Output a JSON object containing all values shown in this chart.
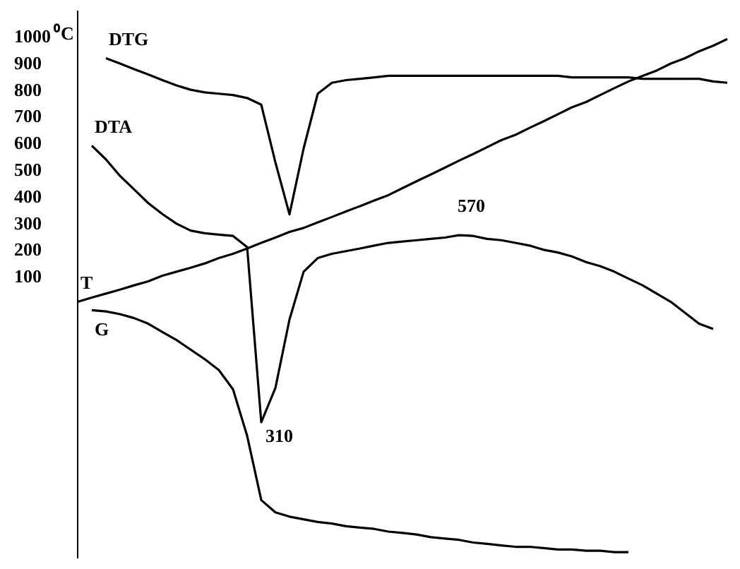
{
  "chart_data": {
    "type": "line",
    "ylabel": "⁰C",
    "categories": [
      null,
      null,
      null,
      null,
      null,
      null,
      null,
      null,
      null,
      null,
      null,
      null,
      null,
      null,
      null,
      null,
      null,
      null,
      null,
      null,
      null,
      null,
      null,
      null,
      null,
      null,
      null,
      null,
      null,
      null,
      null,
      null,
      null,
      null,
      null,
      null,
      null,
      null,
      null,
      null,
      null,
      null,
      null,
      null,
      null,
      null,
      null
    ],
    "series": [
      {
        "name": "DTG",
        "color": "#000000",
        "values": [
          null,
          null,
          923,
          903,
          882,
          862,
          841,
          821,
          805,
          795,
          790,
          785,
          774,
          749,
          533,
          338,
          585,
          790,
          831,
          841,
          846,
          851,
          857,
          857,
          857,
          857,
          857,
          857,
          857,
          857,
          857,
          857,
          857,
          857,
          857,
          851,
          851,
          851,
          851,
          851,
          846,
          846,
          846,
          846,
          846,
          836,
          831
        ]
      },
      {
        "name": "DTA",
        "color": "#000000",
        "values": [
          null,
          595,
          544,
          482,
          431,
          380,
          339,
          303,
          277,
          267,
          262,
          257,
          215,
          -441,
          -313,
          -56,
          123,
          174,
          190,
          200,
          210,
          221,
          231,
          236,
          241,
          246,
          251,
          260,
          257,
          246,
          241,
          231,
          221,
          205,
          195,
          180,
          159,
          144,
          123,
          97,
          72,
          41,
          10,
          -31,
          -72,
          -92,
          null
        ]
      },
      {
        "name": "T",
        "color": "#000000",
        "values": [
          10,
          26,
          41,
          56,
          72,
          87,
          108,
          123,
          138,
          154,
          174,
          190,
          210,
          231,
          251,
          272,
          287,
          308,
          328,
          349,
          369,
          390,
          410,
          436,
          462,
          487,
          513,
          539,
          564,
          590,
          616,
          636,
          662,
          687,
          713,
          739,
          759,
          785,
          811,
          836,
          857,
          877,
          903,
          923,
          949,
          970,
          995
        ]
      },
      {
        "name": "G",
        "color": "#000000",
        "values": [
          null,
          -21,
          -26,
          -36,
          -51,
          -72,
          -103,
          -133,
          -169,
          -205,
          -246,
          -318,
          -492,
          -733,
          -779,
          -795,
          -805,
          -815,
          -821,
          -831,
          -836,
          -841,
          -851,
          -856,
          -862,
          -872,
          -877,
          -882,
          -892,
          -897,
          -903,
          -908,
          -908,
          -913,
          -918,
          -918,
          -923,
          -923,
          -928,
          -928,
          null,
          null,
          null,
          null,
          null,
          null,
          null
        ]
      }
    ],
    "annotations": [
      "310",
      "570"
    ],
    "ylim": [
      -950,
      1100
    ],
    "yticks": [
      100,
      200,
      300,
      400,
      500,
      600,
      700,
      800,
      900,
      1000
    ],
    "tick_labels": "y",
    "grid": false,
    "legend": false
  }
}
